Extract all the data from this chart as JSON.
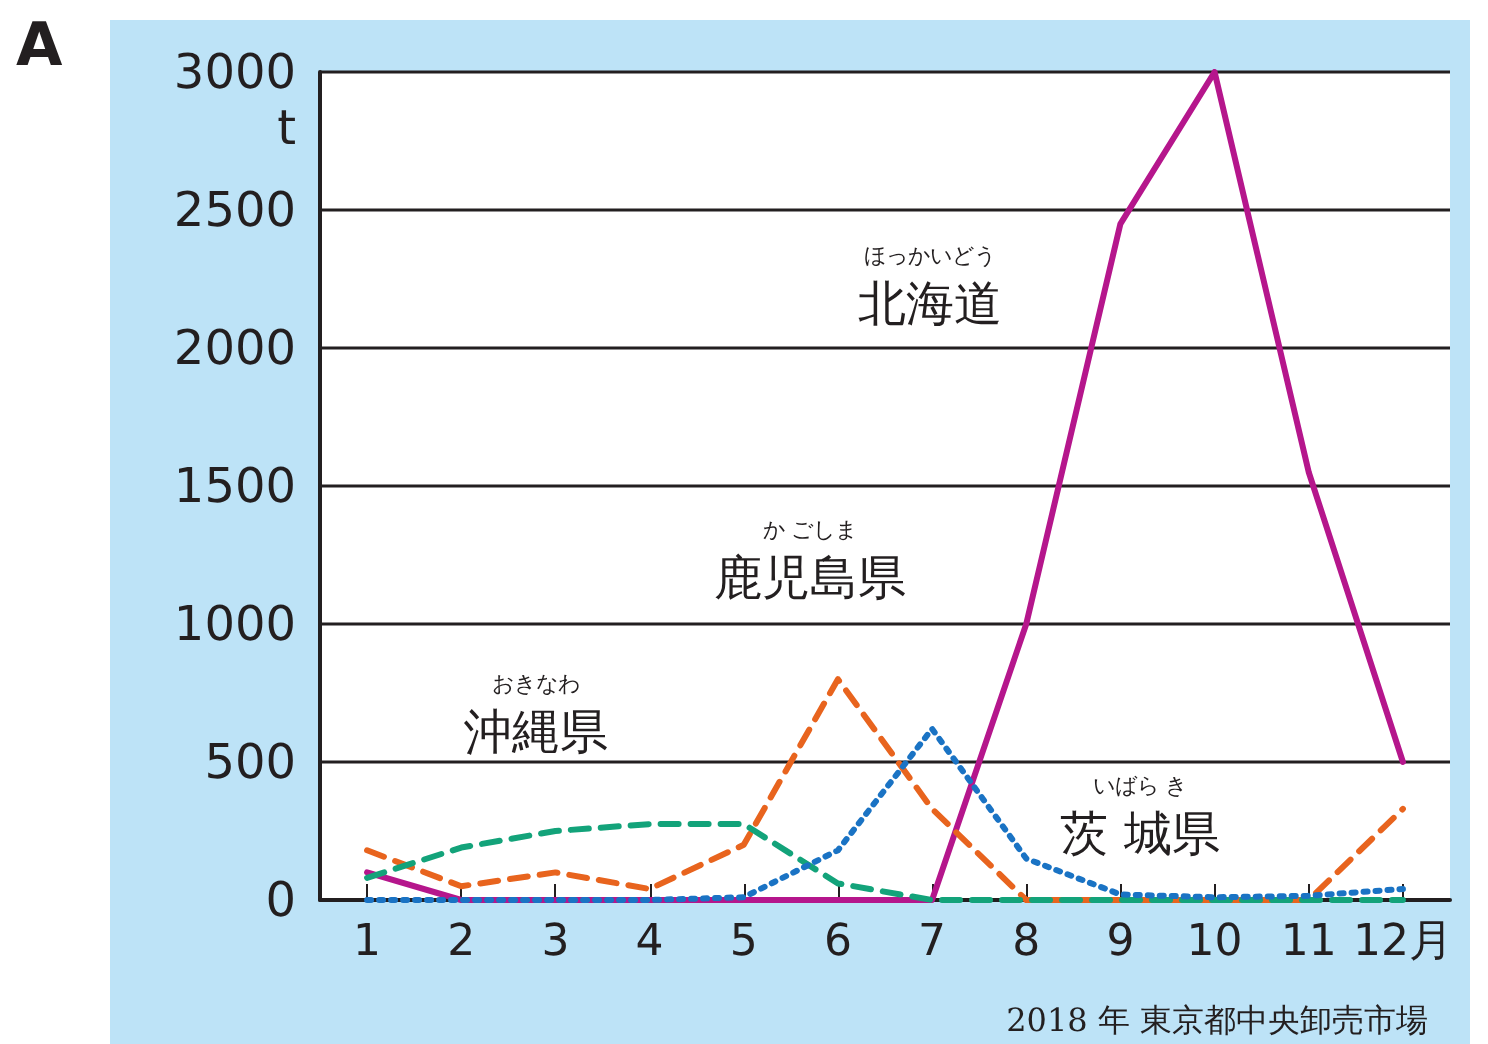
{
  "chart_data": {
    "type": "line",
    "title": "A",
    "ylabel": "t",
    "categories": [
      "1",
      "2",
      "3",
      "4",
      "5",
      "6",
      "7",
      "8",
      "9",
      "10",
      "11",
      "12月"
    ],
    "series": [
      {
        "name": "北海道",
        "color": "#b5168c",
        "line_style": "solid",
        "values": [
          100,
          0,
          0,
          0,
          0,
          0,
          0,
          1000,
          2450,
          3000,
          1550,
          500
        ]
      },
      {
        "name": "鹿児島県",
        "color": "#e8641e",
        "line_style": "dashed",
        "values": [
          180,
          50,
          100,
          40,
          200,
          800,
          330,
          0,
          0,
          0,
          0,
          330
        ]
      },
      {
        "name": "沖縄県",
        "color": "#13a37a",
        "line_style": "dashed",
        "values": [
          80,
          190,
          250,
          275,
          275,
          60,
          0,
          0,
          0,
          0,
          0,
          0
        ]
      },
      {
        "name": "茨 城県",
        "color": "#1a73c4",
        "line_style": "dotted",
        "values": [
          0,
          0,
          0,
          0,
          10,
          180,
          620,
          150,
          20,
          10,
          15,
          40
        ]
      }
    ],
    "annotations": [
      "ほっかいどう",
      "か ごしま",
      "おきなわ",
      "いばら き",
      "2018 年 東京都中央卸売市場"
    ],
    "ylim": [
      0,
      3000
    ],
    "yticks": [
      0,
      500,
      1000,
      1500,
      2000,
      2500,
      3000
    ],
    "grid": "y",
    "legend": false,
    "marker": "none"
  }
}
